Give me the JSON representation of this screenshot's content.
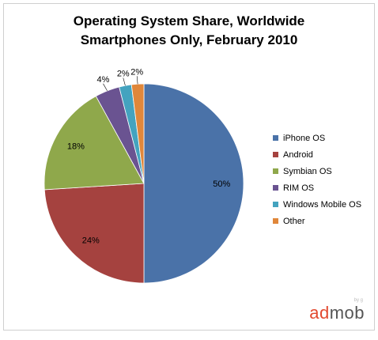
{
  "chart_data": {
    "type": "pie",
    "title": "Operating System Share, Worldwide",
    "subtitle": "Smartphones Only, February 2010",
    "categories": [
      "iPhone OS",
      "Android",
      "Symbian OS",
      "RIM OS",
      "Windows Mobile OS",
      "Other"
    ],
    "values": [
      50,
      24,
      18,
      4,
      2,
      2
    ],
    "labels": [
      "50%",
      "24%",
      "18%",
      "4%",
      "2%",
      "2%"
    ],
    "colors": [
      "#4a72a8",
      "#a5423f",
      "#8fa84b",
      "#6a5391",
      "#44a3bf",
      "#e0873a"
    ],
    "legend": "right"
  },
  "brand": {
    "ad": "ad",
    "mob": "mob",
    "tag": "by g"
  }
}
